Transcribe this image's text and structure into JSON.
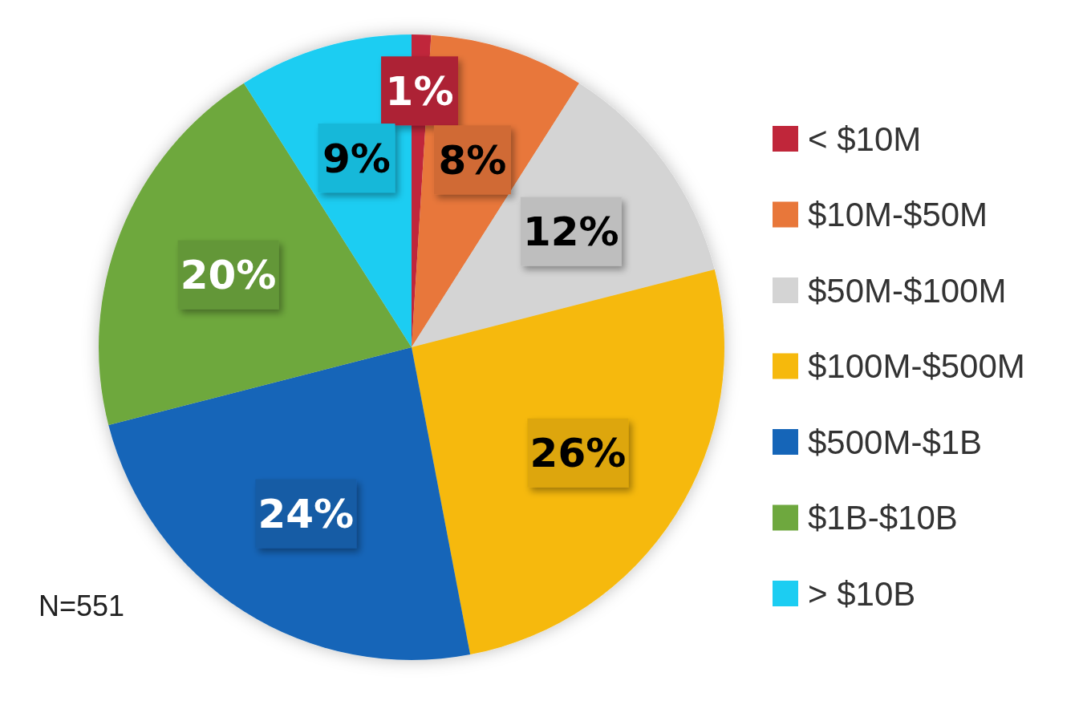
{
  "chart_data": {
    "type": "pie",
    "categories": [
      "< $10M",
      "$10M-$50M",
      "$50M-$100M",
      "$100M-$500M",
      "$500M-$1B",
      "$1B-$10B",
      "> $10B"
    ],
    "values": [
      1,
      8,
      12,
      26,
      24,
      20,
      9
    ],
    "value_labels": [
      "1%",
      "8%",
      "12%",
      "26%",
      "24%",
      "20%",
      "9%"
    ],
    "colors": [
      "#c0263a",
      "#e8773a",
      "#d4d4d4",
      "#f6b90c",
      "#1565b8",
      "#6ea83e",
      "#1ccdf2"
    ],
    "legend": "right",
    "annotations": [
      "N=551"
    ]
  }
}
